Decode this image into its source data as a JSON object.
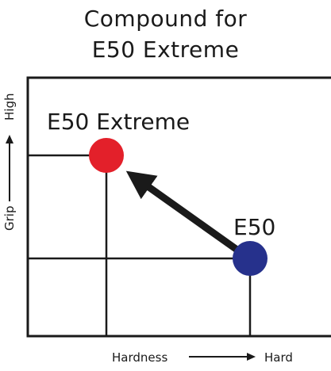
{
  "title": {
    "line1": "Compound for",
    "line2": "E50 Extreme"
  },
  "points": {
    "extreme": {
      "label": "E50 Extreme",
      "color": "#e3202a",
      "grip": "High",
      "hardness": "Softer"
    },
    "base": {
      "label": "E50",
      "color": "#26318c",
      "grip": "Lower",
      "hardness": "Hard"
    }
  },
  "x_axis": {
    "label": "Hardness",
    "end_label": "Hard"
  },
  "y_axis": {
    "label": "Grip",
    "end_label": "High"
  },
  "colors": {
    "lines": "#1a1a1a",
    "arrow": "#1a1a1a",
    "background": "#ffffff"
  }
}
